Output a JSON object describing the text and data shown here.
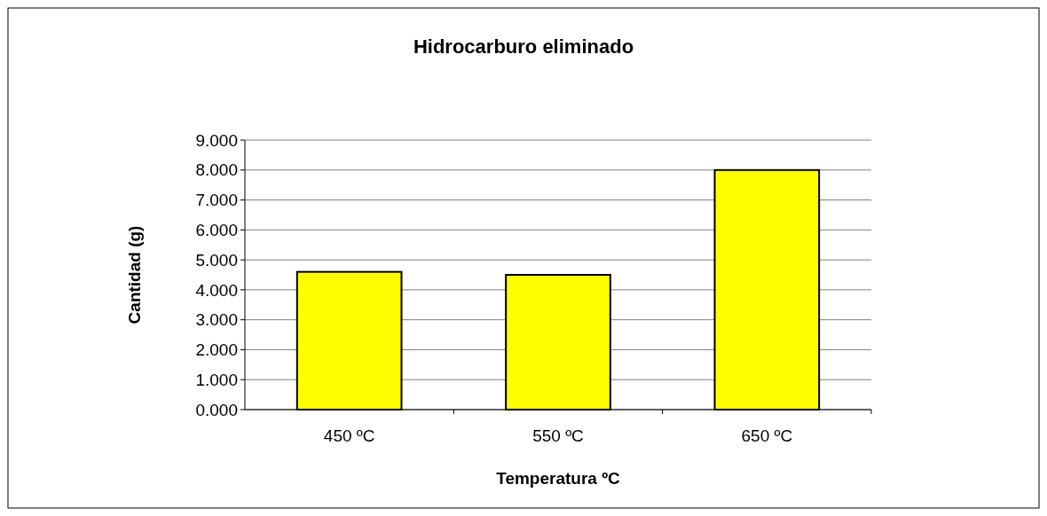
{
  "chart_data": {
    "type": "bar",
    "title": "Hidrocarburo eliminado",
    "xlabel": "Temperatura ºC",
    "ylabel": "Cantidad (g)",
    "categories": [
      "450 ºC",
      "550 ºC",
      "650 ºC"
    ],
    "values": [
      4.6,
      4.5,
      8.0
    ],
    "color": "#ffff00",
    "ylim": [
      0,
      9
    ],
    "yticks": [
      {
        "value": 0,
        "label": "0.000"
      },
      {
        "value": 1,
        "label": "1.000"
      },
      {
        "value": 2,
        "label": "2.000"
      },
      {
        "value": 3,
        "label": "3.000"
      },
      {
        "value": 4,
        "label": "4.000"
      },
      {
        "value": 5,
        "label": "5.000"
      },
      {
        "value": 6,
        "label": "6.000"
      },
      {
        "value": 7,
        "label": "7.000"
      },
      {
        "value": 8,
        "label": "8.000"
      },
      {
        "value": 9,
        "label": "9.000"
      }
    ],
    "grid": "y"
  }
}
